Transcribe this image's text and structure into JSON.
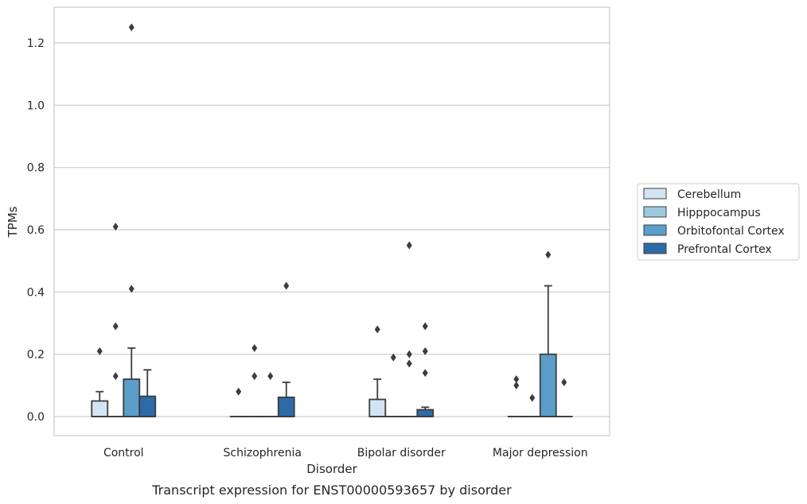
{
  "chart_data": {
    "type": "box",
    "xlabel": "Disorder",
    "ylabel": "TPMs",
    "caption": "Transcript expression for ENST00000593657 by disorder",
    "ylim": [
      -0.06,
      1.32
    ],
    "yticks": [
      "0.0",
      "0.2",
      "0.4",
      "0.6",
      "0.8",
      "1.0",
      "1.2"
    ],
    "ytick_values": [
      0.0,
      0.2,
      0.4,
      0.6,
      0.8,
      1.0,
      1.2
    ],
    "grid": "horizontal",
    "legend_position": "right",
    "categories": [
      "Control",
      "Schizophrenia",
      "Bipolar disorder",
      "Major depression"
    ],
    "series": [
      {
        "name": "Cerebellum",
        "color": "#d3e4f3",
        "boxes": [
          {
            "category": "Control",
            "q1": 0.0,
            "median": 0.0,
            "q3": 0.05,
            "whisker_low": 0.0,
            "whisker_high": 0.08,
            "outliers": [
              0.21
            ]
          },
          {
            "category": "Schizophrenia",
            "q1": 0.0,
            "median": 0.0,
            "q3": 0.0,
            "whisker_low": 0.0,
            "whisker_high": 0.0,
            "outliers": [
              0.08
            ]
          },
          {
            "category": "Bipolar disorder",
            "q1": 0.0,
            "median": 0.0,
            "q3": 0.055,
            "whisker_low": 0.0,
            "whisker_high": 0.12,
            "outliers": [
              0.28
            ]
          },
          {
            "category": "Major depression",
            "q1": 0.0,
            "median": 0.0,
            "q3": 0.0,
            "whisker_low": 0.0,
            "whisker_high": 0.0,
            "outliers": [
              0.12,
              0.1
            ]
          }
        ]
      },
      {
        "name": "Hipppocampus",
        "color": "#9ecae1",
        "boxes": [
          {
            "category": "Control",
            "q1": 0.0,
            "median": 0.0,
            "q3": 0.0,
            "whisker_low": 0.0,
            "whisker_high": 0.0,
            "outliers": [
              0.13,
              0.29,
              0.61
            ]
          },
          {
            "category": "Schizophrenia",
            "q1": 0.0,
            "median": 0.0,
            "q3": 0.0,
            "whisker_low": 0.0,
            "whisker_high": 0.0,
            "outliers": [
              0.13,
              0.22
            ]
          },
          {
            "category": "Bipolar disorder",
            "q1": 0.0,
            "median": 0.0,
            "q3": 0.0,
            "whisker_low": 0.0,
            "whisker_high": 0.0,
            "outliers": [
              0.19
            ]
          },
          {
            "category": "Major depression",
            "q1": 0.0,
            "median": 0.0,
            "q3": 0.0,
            "whisker_low": 0.0,
            "whisker_high": 0.0,
            "outliers": [
              0.06
            ]
          }
        ]
      },
      {
        "name": "Orbitofontal Cortex",
        "color": "#5b9ec9",
        "boxes": [
          {
            "category": "Control",
            "q1": 0.0,
            "median": 0.0,
            "q3": 0.12,
            "whisker_low": 0.0,
            "whisker_high": 0.22,
            "outliers": [
              0.41,
              1.25
            ]
          },
          {
            "category": "Schizophrenia",
            "q1": 0.0,
            "median": 0.0,
            "q3": 0.0,
            "whisker_low": 0.0,
            "whisker_high": 0.0,
            "outliers": [
              0.13
            ]
          },
          {
            "category": "Bipolar disorder",
            "q1": 0.0,
            "median": 0.0,
            "q3": 0.0,
            "whisker_low": 0.0,
            "whisker_high": 0.0,
            "outliers": [
              0.17,
              0.2,
              0.55
            ]
          },
          {
            "category": "Major depression",
            "q1": 0.0,
            "median": 0.0,
            "q3": 0.2,
            "whisker_low": 0.0,
            "whisker_high": 0.42,
            "outliers": [
              0.52
            ]
          }
        ]
      },
      {
        "name": "Prefrontal Cortex",
        "color": "#2d6aa8",
        "boxes": [
          {
            "category": "Control",
            "q1": 0.0,
            "median": 0.0,
            "q3": 0.065,
            "whisker_low": 0.0,
            "whisker_high": 0.15,
            "outliers": []
          },
          {
            "category": "Schizophrenia",
            "q1": 0.0,
            "median": 0.0,
            "q3": 0.062,
            "whisker_low": 0.0,
            "whisker_high": 0.11,
            "outliers": [
              0.42
            ]
          },
          {
            "category": "Bipolar disorder",
            "q1": 0.0,
            "median": 0.0,
            "q3": 0.022,
            "whisker_low": 0.0,
            "whisker_high": 0.03,
            "outliers": [
              0.14,
              0.21,
              0.29
            ]
          },
          {
            "category": "Major depression",
            "q1": 0.0,
            "median": 0.0,
            "q3": 0.0,
            "whisker_low": 0.0,
            "whisker_high": 0.0,
            "outliers": [
              0.11
            ]
          }
        ]
      }
    ]
  }
}
